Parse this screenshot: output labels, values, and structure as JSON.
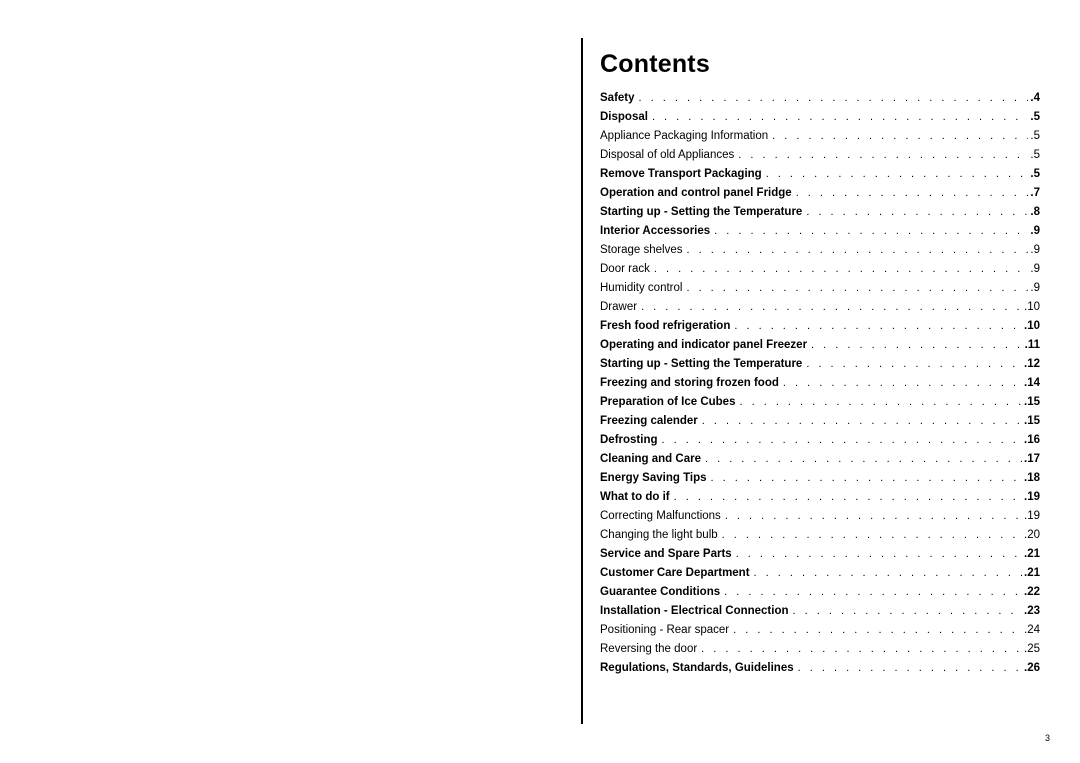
{
  "title": "Contents",
  "page_number": "3",
  "dot_fill": ". . . . . . . . . . . . . . . . . . . . . . . . . . . . . . . . . . . . . . . . . . . . . . . . . . . . . . . . . . . . . . . . . . . . . . . . . . . . . . . .",
  "toc": [
    {
      "label": "Safety",
      "page": "4",
      "bold": true
    },
    {
      "label": "Disposal",
      "page": "5",
      "bold": true
    },
    {
      "label": "Appliance Packaging Information",
      "page": "5",
      "bold": false
    },
    {
      "label": "Disposal of old Appliances",
      "page": "5",
      "bold": false
    },
    {
      "label": "Remove Transport Packaging",
      "page": "5",
      "bold": true
    },
    {
      "label": "Operation and control panel Fridge",
      "page": "7",
      "bold": true
    },
    {
      "label": "Starting up - Setting the Temperature",
      "page": "8",
      "bold": true
    },
    {
      "label": "Interior Accessories",
      "page": "9",
      "bold": true
    },
    {
      "label": "Storage shelves",
      "page": "9",
      "bold": false
    },
    {
      "label": "Door rack",
      "page": "9",
      "bold": false
    },
    {
      "label": "Humidity control",
      "page": "9",
      "bold": false
    },
    {
      "label": "Drawer",
      "page": "10",
      "bold": false
    },
    {
      "label": "Fresh food refrigeration",
      "page": "10",
      "bold": true
    },
    {
      "label": "Operating and indicator panel Freezer",
      "page": "11",
      "bold": true
    },
    {
      "label": "Starting up - Setting the Temperature",
      "page": "12",
      "bold": true
    },
    {
      "label": "Freezing and storing frozen food",
      "page": "14",
      "bold": true
    },
    {
      "label": "Preparation of Ice Cubes",
      "page": "15",
      "bold": true
    },
    {
      "label": "Freezing calender",
      "page": "15",
      "bold": true
    },
    {
      "label": "Defrosting",
      "page": "16",
      "bold": true
    },
    {
      "label": "Cleaning and Care",
      "page": "17",
      "bold": true
    },
    {
      "label": "Energy Saving Tips",
      "page": "18",
      "bold": true
    },
    {
      "label": "What to do if",
      "page": "19",
      "bold": true
    },
    {
      "label": "Correcting Malfunctions",
      "page": "19",
      "bold": false
    },
    {
      "label": "Changing the light bulb",
      "page": "20",
      "bold": false
    },
    {
      "label": "Service and Spare Parts",
      "page": "21",
      "bold": true
    },
    {
      "label": "Customer Care Department",
      "page": "21",
      "bold": true
    },
    {
      "label": "Guarantee Conditions",
      "page": "22",
      "bold": true
    },
    {
      "label": "Installation - Electrical Connection",
      "page": "23",
      "bold": true
    },
    {
      "label": "Positioning - Rear spacer",
      "page": "24",
      "bold": false
    },
    {
      "label": "Reversing the door",
      "page": "25",
      "bold": false
    },
    {
      "label": "Regulations, Standards, Guidelines",
      "page": "26",
      "bold": true
    }
  ]
}
